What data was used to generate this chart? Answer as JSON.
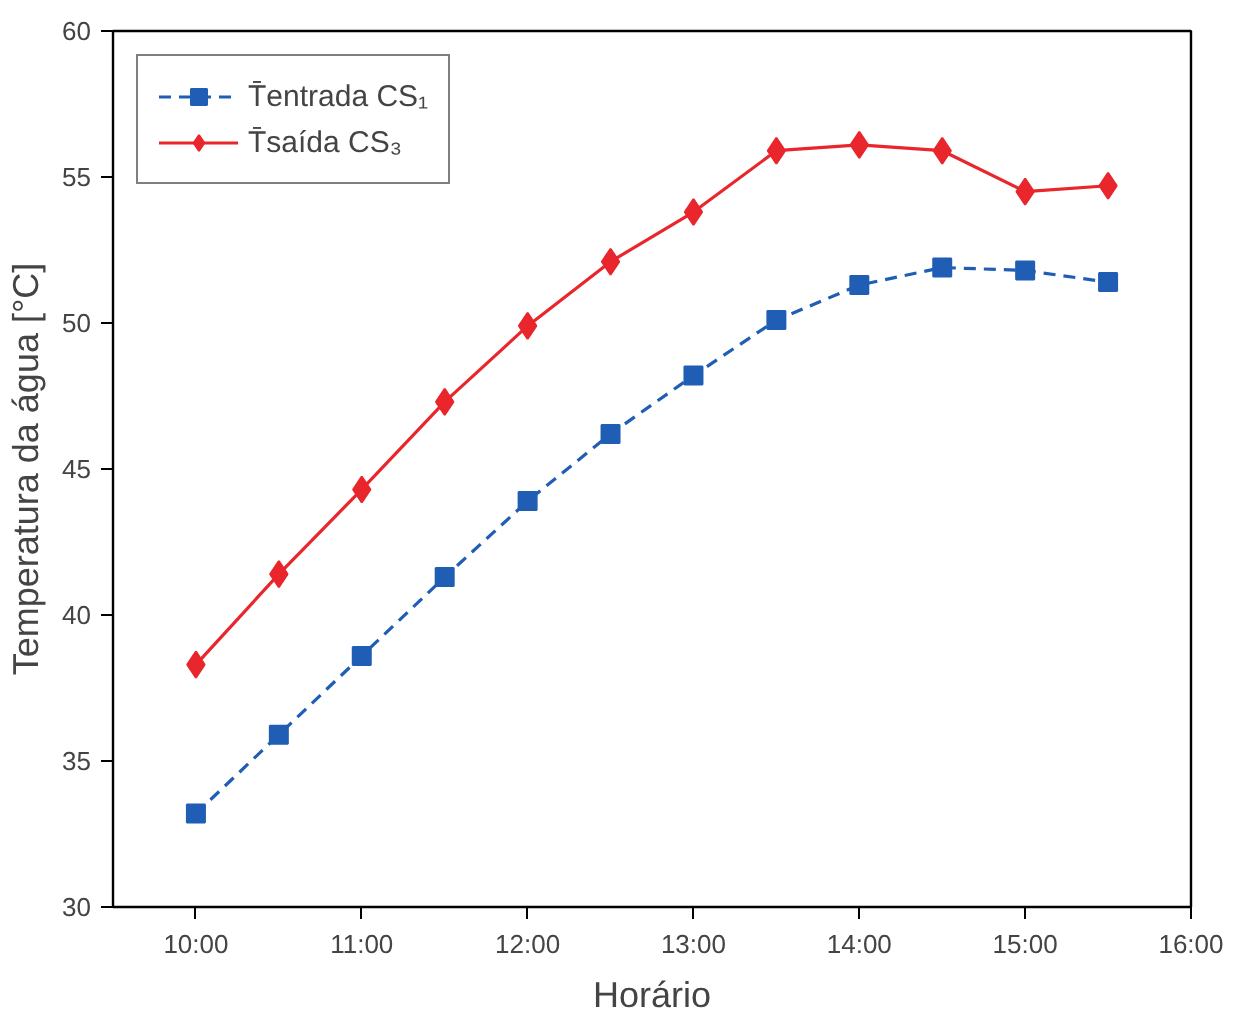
{
  "chart_data": {
    "type": "line",
    "xlabel": "Horário",
    "ylabel": "Temperatura da água [°C]",
    "x": [
      10,
      10.5,
      11,
      11.5,
      12,
      12.5,
      13,
      13.5,
      14,
      14.5,
      15,
      15.5
    ],
    "series": [
      {
        "name": "T̄entrada CS₁",
        "color": "#1f5eb4",
        "marker": "square",
        "line_style": "dashed",
        "values": [
          33.2,
          35.9,
          38.6,
          41.3,
          43.9,
          46.2,
          48.2,
          50.1,
          51.3,
          51.9,
          51.8,
          51.4
        ]
      },
      {
        "name": "T̄saída CS₃",
        "color": "#e8262c",
        "marker": "diamond",
        "line_style": "solid",
        "values": [
          38.3,
          41.4,
          44.3,
          47.3,
          49.9,
          52.1,
          53.8,
          55.9,
          56.1,
          55.9,
          54.5,
          54.7
        ]
      }
    ],
    "xlim": [
      9.5,
      16
    ],
    "xticks": [
      {
        "value": 10,
        "label": "10:00"
      },
      {
        "value": 11,
        "label": "11:00"
      },
      {
        "value": 12,
        "label": "12:00"
      },
      {
        "value": 13,
        "label": "13:00"
      },
      {
        "value": 14,
        "label": "14:00"
      },
      {
        "value": 15,
        "label": "15:00"
      },
      {
        "value": 16,
        "label": "16:00"
      }
    ],
    "ylim": [
      30,
      60
    ],
    "yticks": [
      30,
      35,
      40,
      45,
      50,
      55,
      60
    ],
    "grid": false,
    "legend": "top left"
  }
}
